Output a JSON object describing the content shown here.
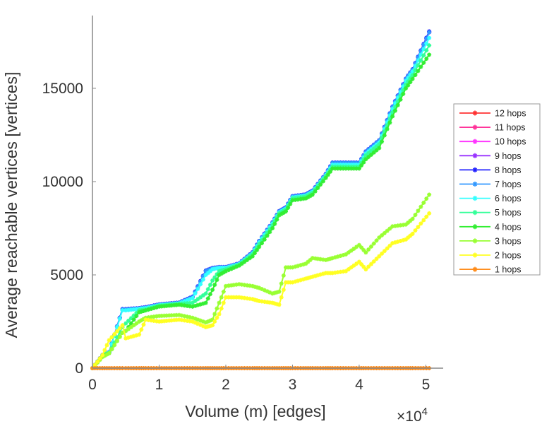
{
  "chart_data": {
    "type": "line",
    "title": "",
    "xlabel": "Volume (m) [edges]",
    "ylabel": "Average reachable vertices [vertices]",
    "x_multiplier_label": "×10",
    "x_multiplier_exp": "4",
    "xlim": [
      0,
      52600
    ],
    "ylim": [
      0,
      18900
    ],
    "xticks": [
      0,
      10000,
      20000,
      30000,
      40000,
      50000
    ],
    "xtick_labels": [
      "0",
      "1",
      "2",
      "3",
      "4",
      "5"
    ],
    "yticks": [
      0,
      5000,
      10000,
      15000
    ],
    "ytick_labels": [
      "0",
      "5000",
      "10000",
      "15000"
    ],
    "grid": false,
    "legend_position": "right",
    "marker": "asterisk",
    "x": [
      0,
      1500,
      2500,
      4500,
      5000,
      7000,
      8000,
      10000,
      13000,
      15000,
      17000,
      18000,
      19000,
      20000,
      22000,
      24000,
      25000,
      27000,
      28000,
      29000,
      30000,
      32000,
      33000,
      35000,
      36000,
      38000,
      40000,
      41000,
      43000,
      45000,
      47000,
      48000,
      50500
    ],
    "series": [
      {
        "name": "12 hops",
        "color": "#ff3333",
        "values": [
          0,
          700,
          850,
          3150,
          3150,
          3200,
          3250,
          3400,
          3500,
          3800,
          5200,
          5350,
          5400,
          5400,
          5600,
          6200,
          6800,
          7800,
          8400,
          8600,
          9200,
          9300,
          9500,
          10400,
          11000,
          11000,
          11000,
          11600,
          12200,
          14000,
          15500,
          16000,
          18000
        ]
      },
      {
        "name": "11 hops",
        "color": "#ff3399",
        "values": [
          0,
          700,
          850,
          3150,
          3150,
          3200,
          3250,
          3400,
          3500,
          3800,
          5200,
          5350,
          5400,
          5400,
          5600,
          6200,
          6800,
          7800,
          8400,
          8600,
          9200,
          9300,
          9500,
          10400,
          11000,
          11000,
          11000,
          11600,
          12200,
          14000,
          15500,
          16000,
          18000
        ]
      },
      {
        "name": "10 hops",
        "color": "#ff33ff",
        "values": [
          0,
          700,
          850,
          3150,
          3150,
          3200,
          3250,
          3400,
          3500,
          3800,
          5200,
          5350,
          5400,
          5400,
          5600,
          6200,
          6800,
          7800,
          8400,
          8600,
          9200,
          9300,
          9500,
          10400,
          11000,
          11000,
          11000,
          11600,
          12200,
          14000,
          15500,
          16000,
          18000
        ]
      },
      {
        "name": "9 hops",
        "color": "#9933ff",
        "values": [
          0,
          700,
          860,
          3160,
          3160,
          3210,
          3260,
          3410,
          3510,
          3820,
          5220,
          5360,
          5410,
          5410,
          5610,
          6210,
          6810,
          7810,
          8410,
          8610,
          9210,
          9310,
          9510,
          10410,
          11010,
          11010,
          11010,
          11610,
          12210,
          14010,
          15510,
          16010,
          18020
        ]
      },
      {
        "name": "8 hops",
        "color": "#2222ff",
        "values": [
          0,
          710,
          860,
          3170,
          3170,
          3220,
          3270,
          3420,
          3520,
          3830,
          5230,
          5370,
          5420,
          5420,
          5620,
          6220,
          6820,
          7820,
          8420,
          8620,
          9220,
          9320,
          9520,
          10420,
          11020,
          11020,
          11020,
          11620,
          12220,
          14020,
          15520,
          16020,
          18050
        ]
      },
      {
        "name": "7 hops",
        "color": "#3399ff",
        "values": [
          0,
          700,
          850,
          3150,
          3150,
          3200,
          3250,
          3400,
          3500,
          3800,
          5200,
          5350,
          5400,
          5400,
          5600,
          6200,
          6800,
          7800,
          8400,
          8600,
          9200,
          9300,
          9500,
          10400,
          11000,
          11000,
          11000,
          11600,
          12200,
          14000,
          15500,
          16000,
          18000
        ]
      },
      {
        "name": "6 hops",
        "color": "#33ffff",
        "values": [
          0,
          690,
          840,
          3100,
          3100,
          3180,
          3220,
          3380,
          3480,
          3750,
          5000,
          5300,
          5380,
          5380,
          5580,
          6150,
          6750,
          7750,
          8350,
          8550,
          9150,
          9250,
          9450,
          10350,
          10900,
          10900,
          10900,
          11500,
          12100,
          13900,
          15400,
          15900,
          17700
        ]
      },
      {
        "name": "5 hops",
        "color": "#33ff99",
        "values": [
          0,
          670,
          820,
          2200,
          2400,
          3100,
          3150,
          3350,
          3450,
          3500,
          4000,
          4700,
          5200,
          5300,
          5550,
          6100,
          6650,
          7650,
          8300,
          8500,
          9100,
          9200,
          9400,
          10300,
          10800,
          10800,
          10800,
          11400,
          12000,
          13700,
          15200,
          15700,
          17300
        ]
      },
      {
        "name": "4 hops",
        "color": "#33ee33",
        "values": [
          0,
          650,
          800,
          1900,
          2000,
          3000,
          3100,
          3300,
          3400,
          3300,
          3500,
          4200,
          5000,
          5200,
          5500,
          6000,
          6500,
          7500,
          8200,
          8400,
          9000,
          9100,
          9300,
          10200,
          10700,
          10700,
          10700,
          11200,
          11800,
          13500,
          15000,
          15500,
          16800
        ]
      },
      {
        "name": "3 hops",
        "color": "#99ff33",
        "values": [
          0,
          600,
          800,
          1900,
          2000,
          2500,
          2700,
          2800,
          2850,
          2700,
          2450,
          2600,
          3500,
          4400,
          4500,
          4400,
          4300,
          4000,
          4100,
          5400,
          5400,
          5600,
          5900,
          5800,
          5900,
          6100,
          6600,
          6200,
          7000,
          7600,
          7700,
          8000,
          9300
        ]
      },
      {
        "name": "2 hops",
        "color": "#ffff22",
        "values": [
          0,
          700,
          1500,
          2300,
          1600,
          1800,
          2600,
          2500,
          2600,
          2500,
          2200,
          2300,
          2900,
          3800,
          3800,
          3700,
          3600,
          3500,
          3400,
          4600,
          4600,
          4800,
          4900,
          5100,
          5100,
          5200,
          5700,
          5300,
          6000,
          6700,
          6900,
          7200,
          8300
        ]
      },
      {
        "name": "1 hops",
        "color": "#ff8c1a",
        "values": [
          0,
          0,
          0,
          0,
          0,
          0,
          0,
          0,
          0,
          0,
          0,
          0,
          0,
          0,
          0,
          0,
          0,
          0,
          0,
          0,
          0,
          0,
          0,
          0,
          0,
          0,
          0,
          0,
          0,
          0,
          0,
          0,
          0
        ]
      }
    ]
  }
}
